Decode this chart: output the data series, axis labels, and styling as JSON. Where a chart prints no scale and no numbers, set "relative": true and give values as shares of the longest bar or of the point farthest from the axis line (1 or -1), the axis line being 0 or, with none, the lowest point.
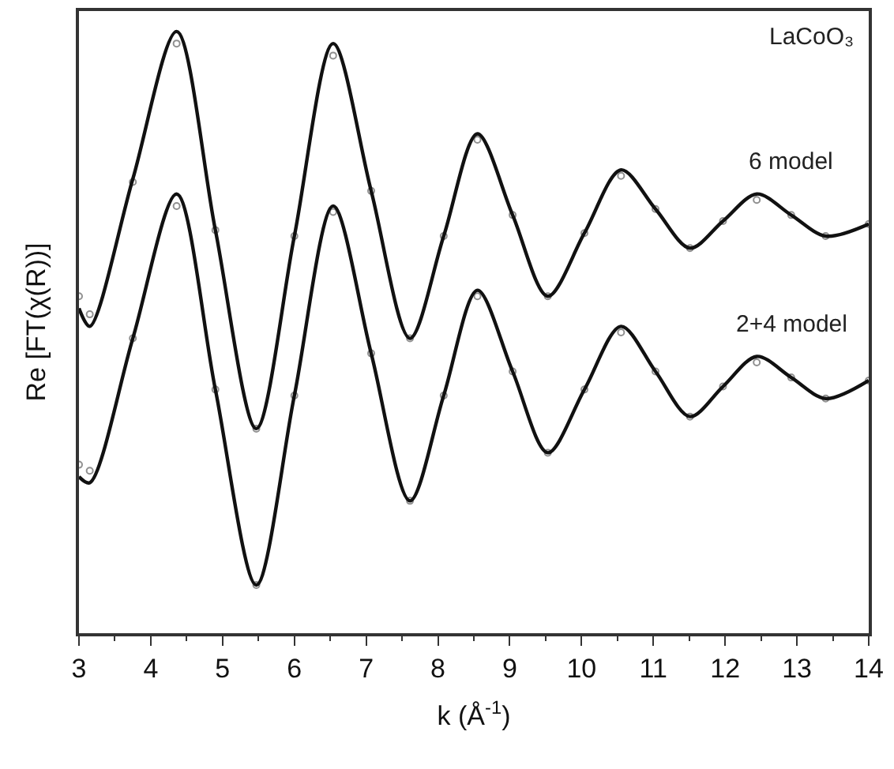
{
  "chart_data": {
    "type": "line",
    "relative": true,
    "xlabel": "k (Å$^{-1}$)",
    "ylabel": "Re [FT(χ(R))]",
    "annotations": [
      "LaCoO₃"
    ],
    "xlim": [
      3,
      14
    ],
    "xticks": [
      3,
      4,
      5,
      6,
      7,
      8,
      9,
      10,
      11,
      12,
      13,
      14
    ],
    "x": [
      3.0,
      3.15,
      3.75,
      4.36,
      4.9,
      5.47,
      6.0,
      6.54,
      7.07,
      7.61,
      8.08,
      8.55,
      9.04,
      9.53,
      10.04,
      10.55,
      11.03,
      11.51,
      11.97,
      12.44,
      12.92,
      13.4,
      14.0
    ],
    "series": [
      {
        "type": "scatter",
        "marker": "circle",
        "color": "#909090",
        "values": [
          0.56,
          0.53,
          0.75,
          0.98,
          0.67,
          0.34,
          0.66,
          0.96,
          0.735,
          0.49,
          0.66,
          0.82,
          0.695,
          0.56,
          0.665,
          0.76,
          0.705,
          0.64,
          0.685,
          0.72,
          0.695,
          0.66,
          0.68
        ]
      },
      {
        "name": "6 model",
        "marker": "none",
        "line_style": "solid",
        "color": "#111111",
        "values": [
          0.54,
          0.51,
          0.755,
          1.0,
          0.67,
          0.34,
          0.66,
          0.98,
          0.735,
          0.49,
          0.66,
          0.83,
          0.695,
          0.56,
          0.665,
          0.77,
          0.705,
          0.64,
          0.685,
          0.73,
          0.695,
          0.66,
          0.68
        ]
      },
      {
        "type": "scatter",
        "marker": "circle",
        "color": "#909090",
        "values": [
          0.28,
          0.27,
          0.49,
          0.71,
          0.405,
          0.08,
          0.395,
          0.7,
          0.465,
          0.22,
          0.395,
          0.56,
          0.435,
          0.3,
          0.405,
          0.5,
          0.435,
          0.36,
          0.41,
          0.45,
          0.425,
          0.39,
          0.42
        ]
      },
      {
        "name": "2+4 model",
        "marker": "none",
        "line_style": "solid",
        "color": "#111111",
        "values": [
          0.26,
          0.25,
          0.49,
          0.73,
          0.405,
          0.08,
          0.395,
          0.71,
          0.465,
          0.22,
          0.395,
          0.57,
          0.435,
          0.3,
          0.405,
          0.51,
          0.435,
          0.36,
          0.41,
          0.46,
          0.425,
          0.39,
          0.42
        ]
      }
    ]
  }
}
